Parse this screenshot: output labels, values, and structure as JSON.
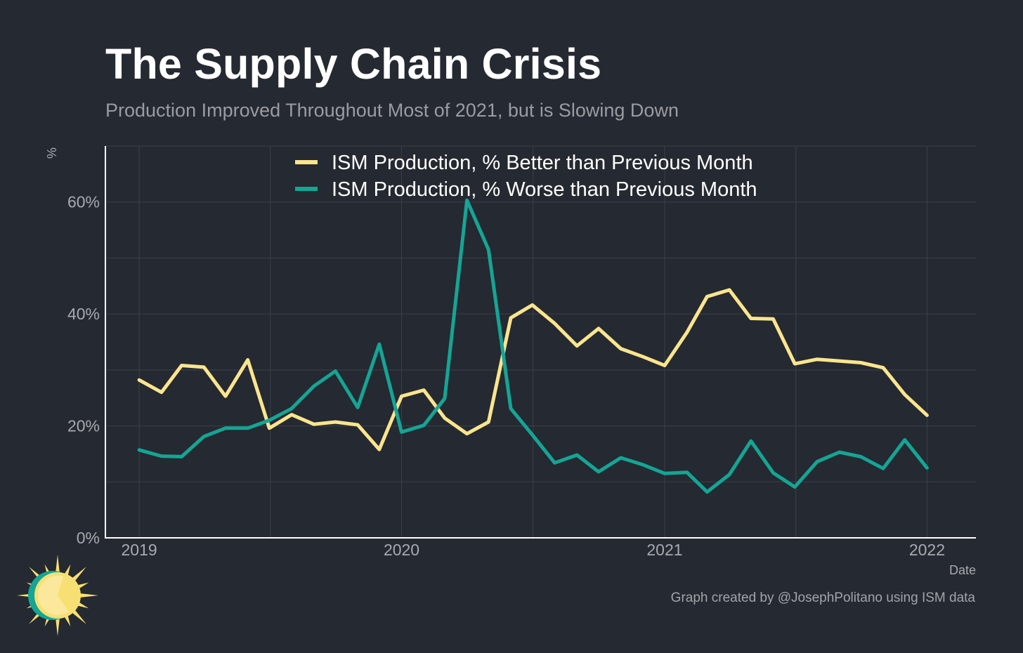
{
  "title": "The Supply Chain Crisis",
  "subtitle": "Production Improved Throughout Most of 2021, but is Slowing Down",
  "caption": "Graph created by @JosephPolitano using ISM data",
  "colors": {
    "background": "#252931",
    "better": "#fbe58e",
    "worse": "#14a595",
    "grid": "#3c4049",
    "axis": "#ffffff",
    "logo_sun": "#f7df73",
    "logo_ring": "#14a595"
  },
  "logo": {
    "icon": "sun-logo-icon"
  },
  "chart_data": {
    "type": "line",
    "xlabel": "Date",
    "ylabel": "%",
    "xlim": [
      "2018-11-15",
      "2022-03-10"
    ],
    "ylim": [
      0,
      70
    ],
    "yticks": [
      0,
      20,
      40,
      60
    ],
    "ytick_labels": [
      "0%",
      "20%",
      "40%",
      "60%"
    ],
    "xticks": [
      "2019-01-01",
      "2020-01-01",
      "2021-01-01",
      "2022-01-01"
    ],
    "xtick_labels": [
      "2019",
      "2020",
      "2021",
      "2022"
    ],
    "legend_position": "top-center",
    "x": [
      "2019-01",
      "2019-02",
      "2019-03",
      "2019-04",
      "2019-05",
      "2019-06",
      "2019-07",
      "2019-08",
      "2019-09",
      "2019-10",
      "2019-11",
      "2019-12",
      "2020-01",
      "2020-02",
      "2020-03",
      "2020-04",
      "2020-05",
      "2020-06",
      "2020-07",
      "2020-08",
      "2020-09",
      "2020-10",
      "2020-11",
      "2020-12",
      "2021-01",
      "2021-02",
      "2021-03",
      "2021-04",
      "2021-05",
      "2021-06",
      "2021-07",
      "2021-08",
      "2021-09",
      "2021-10",
      "2021-11",
      "2021-12",
      "2022-01"
    ],
    "series": [
      {
        "name": "ISM Production, % Better than Previous Month",
        "color": "#fbe58e",
        "values": [
          28.2,
          26.0,
          30.8,
          30.5,
          25.3,
          31.8,
          19.6,
          22.0,
          20.3,
          20.7,
          20.2,
          15.8,
          25.3,
          26.4,
          21.4,
          18.6,
          20.7,
          39.3,
          41.6,
          38.3,
          34.3,
          37.4,
          33.8,
          32.4,
          30.8,
          36.7,
          43.1,
          44.3,
          39.2,
          39.1,
          31.1,
          31.9,
          31.6,
          31.3,
          30.4,
          25.6,
          21.9
        ]
      },
      {
        "name": "ISM Production, % Worse than Previous Month",
        "color": "#14a595",
        "values": [
          15.7,
          14.6,
          14.5,
          18.1,
          19.6,
          19.6,
          21.0,
          23.1,
          27.1,
          29.8,
          23.3,
          34.6,
          18.9,
          20.1,
          24.9,
          60.3,
          51.5,
          23.1,
          18.4,
          13.4,
          14.8,
          11.8,
          14.3,
          13.1,
          11.5,
          11.7,
          8.2,
          11.3,
          17.3,
          11.6,
          9.1,
          13.6,
          15.3,
          14.5,
          12.4,
          17.5,
          12.5
        ]
      }
    ]
  }
}
